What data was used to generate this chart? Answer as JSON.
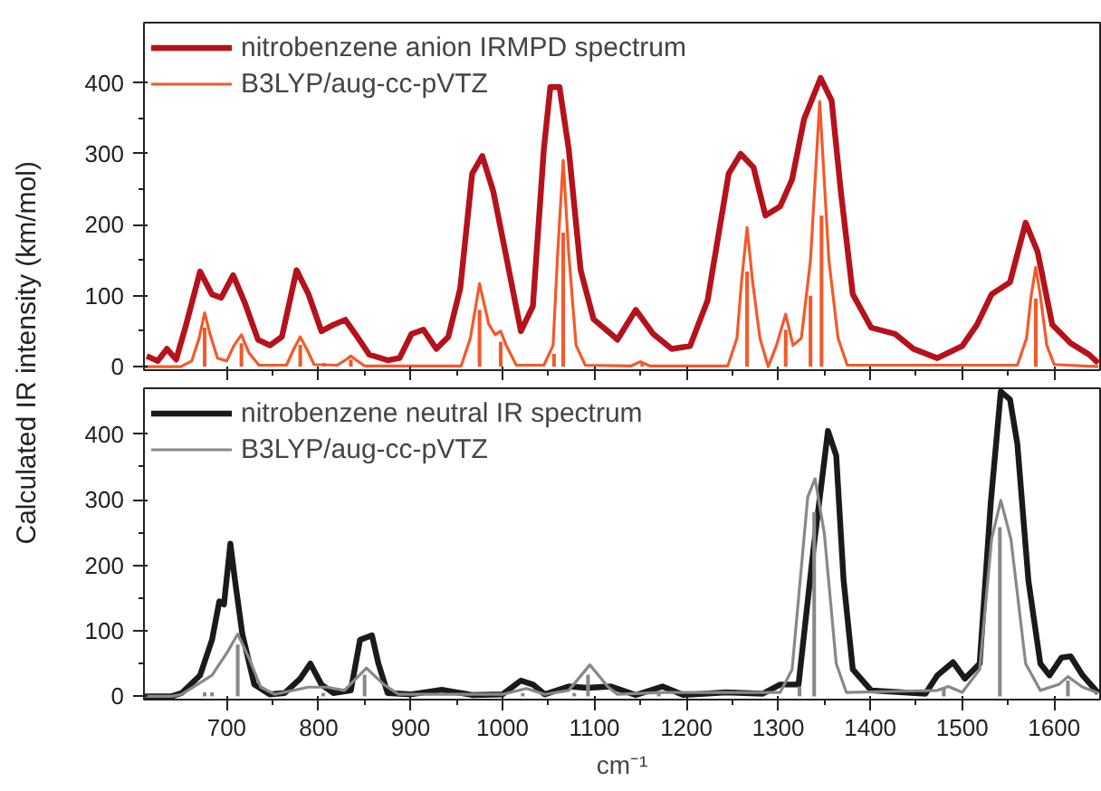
{
  "chart_data": [
    {
      "type": "line",
      "ylabel": "Calculated IR intensity (km/mol)",
      "xlim": [
        610,
        1650
      ],
      "ylim": [
        -5,
        485
      ],
      "xticks": [
        700,
        800,
        900,
        1000,
        1100,
        1200,
        1300,
        1400,
        1500,
        1600
      ],
      "yticks": [
        0,
        100,
        200,
        300,
        400
      ],
      "tick_labels": "y",
      "grid": false,
      "legend": "top left",
      "marker": "none",
      "line_style": "solid",
      "series": [
        {
          "name": "nitrobenzene anion IRMPD spectrum",
          "color": "#b5121b",
          "x": [
            613,
            625,
            635,
            645,
            655,
            671,
            684,
            694,
            707,
            720,
            734,
            747,
            760,
            776,
            789,
            803,
            816,
            829,
            842,
            855,
            875,
            888,
            901,
            914,
            928,
            941,
            954,
            967,
            978,
            990,
            1003,
            1020,
            1033,
            1045,
            1052,
            1062,
            1072,
            1085,
            1099,
            1118,
            1125,
            1145,
            1164,
            1184,
            1204,
            1223,
            1246,
            1259,
            1273,
            1286,
            1302,
            1315,
            1328,
            1346,
            1358,
            1368,
            1381,
            1401,
            1427,
            1447,
            1473,
            1500,
            1516,
            1532,
            1552,
            1569,
            1582,
            1598,
            1618,
            1638,
            1648
          ],
          "values": [
            15,
            8,
            25,
            10,
            55,
            134,
            102,
            97,
            129,
            89,
            38,
            30,
            42,
            136,
            102,
            50,
            59,
            66,
            42,
            17,
            9,
            12,
            46,
            52,
            25,
            42,
            110,
            272,
            297,
            247,
            162,
            50,
            85,
            307,
            394,
            394,
            307,
            136,
            67,
            46,
            38,
            80,
            46,
            25,
            29,
            93,
            272,
            300,
            281,
            213,
            226,
            264,
            349,
            407,
            375,
            247,
            102,
            55,
            46,
            25,
            12,
            29,
            59,
            102,
            119,
            203,
            162,
            59,
            33,
            17,
            5
          ]
        },
        {
          "name": "B3LYP/aug-cc-pVTZ",
          "color": "#f4592a",
          "x": [
            610,
            650,
            662,
            670,
            676,
            682,
            690,
            700,
            708,
            716,
            724,
            735,
            765,
            773,
            780,
            787,
            795,
            820,
            830,
            835,
            840,
            850,
            955,
            965,
            975,
            985,
            992,
            998,
            1004,
            1015,
            1045,
            1055,
            1060,
            1066,
            1072,
            1080,
            1090,
            1140,
            1150,
            1160,
            1245,
            1255,
            1260,
            1266,
            1272,
            1280,
            1289,
            1298,
            1308,
            1316,
            1325,
            1335,
            1345,
            1355,
            1365,
            1375,
            1560,
            1570,
            1575,
            1580,
            1585,
            1592,
            1600,
            1648
          ],
          "values": [
            0,
            0,
            8,
            40,
            76,
            45,
            12,
            8,
            30,
            45,
            20,
            2,
            2,
            25,
            42,
            25,
            3,
            2,
            10,
            15,
            10,
            1,
            1,
            40,
            117,
            60,
            45,
            50,
            30,
            2,
            2,
            30,
            160,
            291,
            160,
            30,
            2,
            1,
            7,
            1,
            1,
            40,
            120,
            196,
            120,
            40,
            0,
            30,
            74,
            30,
            40,
            150,
            374,
            150,
            40,
            2,
            2,
            40,
            100,
            140,
            100,
            30,
            3,
            0
          ]
        },
        {
          "color": "#f4592a",
          "type": "bar",
          "x": [
            676,
            716,
            780,
            806,
            835,
            975,
            998,
            1056,
            1066,
            1152,
            1266,
            1308,
            1335,
            1347,
            1580
          ],
          "values": [
            55,
            33,
            31,
            5,
            10,
            80,
            35,
            18,
            189,
            6,
            134,
            52,
            100,
            213,
            96
          ]
        }
      ]
    },
    {
      "type": "line",
      "xlabel": "cm⁻¹",
      "xlim": [
        610,
        1650
      ],
      "ylim": [
        -5,
        470
      ],
      "xticks": [
        700,
        800,
        900,
        1000,
        1100,
        1200,
        1300,
        1400,
        1500,
        1600
      ],
      "yticks": [
        0,
        100,
        200,
        300,
        400
      ],
      "grid": false,
      "legend": "top left",
      "marker": "none",
      "line_style": "solid",
      "series": [
        {
          "name": "nitrobenzene neutral IR spectrum",
          "color": "#1a1a1a",
          "x": [
            610,
            640,
            651,
            671,
            684,
            692,
            697,
            704,
            709,
            717,
            730,
            747,
            763,
            780,
            791,
            803,
            816,
            835,
            845,
            858,
            865,
            875,
            901,
            934,
            967,
            1000,
            1020,
            1033,
            1046,
            1072,
            1092,
            1118,
            1145,
            1174,
            1197,
            1243,
            1283,
            1302,
            1322,
            1338,
            1354,
            1363,
            1371,
            1381,
            1401,
            1460,
            1473,
            1490,
            1503,
            1519,
            1531,
            1542,
            1552,
            1560,
            1572,
            1585,
            1595,
            1608,
            1618,
            1631,
            1648
          ],
          "values": [
            0,
            0,
            5,
            32,
            86,
            145,
            140,
            233,
            177,
            95,
            18,
            3,
            5,
            27,
            50,
            18,
            5,
            9,
            86,
            93,
            50,
            5,
            3,
            10,
            2,
            3,
            24,
            18,
            3,
            15,
            13,
            15,
            2,
            15,
            2,
            6,
            4,
            18,
            18,
            222,
            405,
            367,
            177,
            41,
            9,
            4,
            32,
            52,
            27,
            50,
            294,
            465,
            453,
            385,
            177,
            50,
            32,
            59,
            61,
            32,
            5
          ]
        },
        {
          "name": "B3LYP/aug-cc-pVTZ",
          "color": "#888888",
          "x": [
            610,
            640,
            651,
            684,
            701,
            712,
            724,
            737,
            752,
            789,
            809,
            828,
            852,
            871,
            887,
            1000,
            1026,
            1046,
            1072,
            1095,
            1115,
            1125,
            1174,
            1302,
            1315,
            1332,
            1340,
            1350,
            1363,
            1374,
            1473,
            1485,
            1500,
            1519,
            1532,
            1542,
            1553,
            1569,
            1585,
            1605,
            1615,
            1631,
            1648
          ],
          "values": [
            0,
            0,
            3,
            32,
            68,
            95,
            59,
            14,
            3,
            14,
            14,
            9,
            43,
            18,
            3,
            3,
            12,
            3,
            9,
            48,
            14,
            3,
            6,
            6,
            41,
            304,
            332,
            249,
            50,
            6,
            9,
            15,
            6,
            41,
            240,
            299,
            240,
            50,
            9,
            18,
            30,
            14,
            5
          ]
        },
        {
          "color": "#888888",
          "type": "bar",
          "x": [
            676,
            684,
            712,
            805,
            850,
            1022,
            1078,
            1093,
            1170,
            1323,
            1339,
            1480,
            1541,
            1615
          ],
          "values": [
            6,
            6,
            79,
            5,
            33,
            5,
            5,
            33,
            4,
            15,
            281,
            12,
            258,
            24
          ]
        }
      ]
    }
  ]
}
